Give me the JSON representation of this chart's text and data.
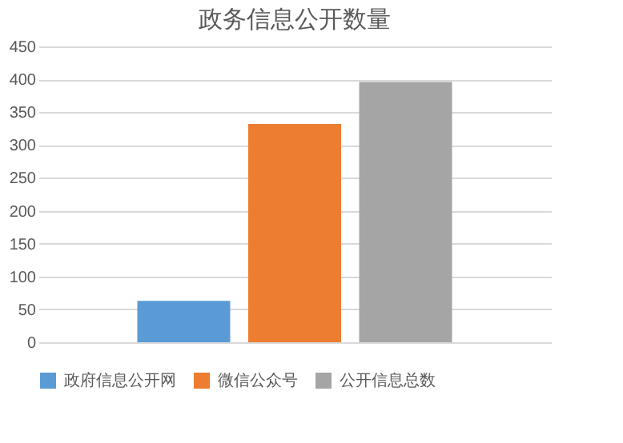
{
  "chart_data": {
    "type": "bar",
    "title": "政务信息公开数量",
    "categories": [
      null
    ],
    "series": [
      {
        "name": "政府信息公开网",
        "color": "#5b9bd5",
        "values": [
          63
        ]
      },
      {
        "name": "微信公众号",
        "color": "#ed7d31",
        "values": [
          332
        ]
      },
      {
        "name": "公开信息总数",
        "color": "#a5a5a5",
        "values": [
          396
        ]
      }
    ],
    "ylim": [
      0,
      450
    ],
    "yticks": [
      0,
      50,
      100,
      150,
      200,
      250,
      300,
      350,
      400,
      450
    ],
    "grid": "y",
    "legend": "bottom",
    "tick_labels": "y"
  }
}
